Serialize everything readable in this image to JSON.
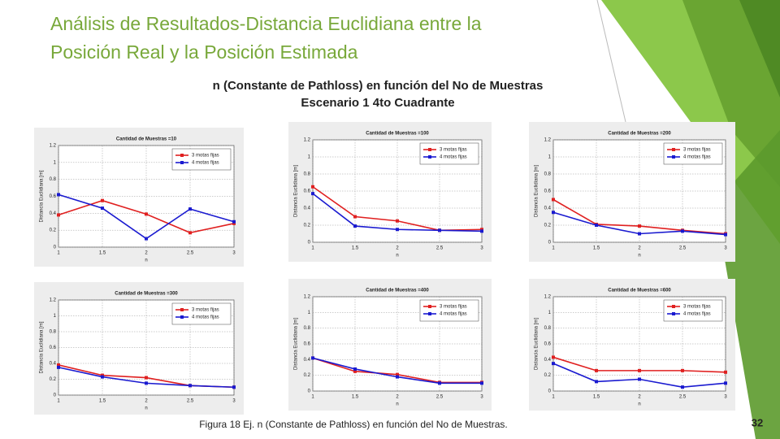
{
  "slide": {
    "title_lines": [
      "Análisis de Resultados-Distancia Euclidiana entre la",
      "Posición Real y la Posición Estimada"
    ],
    "subtitle_lines": [
      "n (Constante de Pathloss) en función del No de Muestras",
      "Escenario 1 4to Cuadrante"
    ],
    "caption": "Figura 18 Ej. n (Constante de Pathloss) en función del No de Muestras.",
    "page_number": "32"
  },
  "chart_data": [
    {
      "type": "line",
      "title": "Cantidad de Muestras =10",
      "x_label": "n",
      "y_label": "Distancia Euclidiana [m]",
      "x": [
        1,
        1.5,
        2,
        2.5,
        3
      ],
      "xlim": [
        1,
        3
      ],
      "xticks": [
        1,
        1.5,
        2,
        2.5,
        3
      ],
      "ylim": [
        0,
        1.2
      ],
      "yticks": [
        0,
        0.2,
        0.4,
        0.6,
        0.8,
        1,
        1.2
      ],
      "grid": true,
      "legend": "upper right",
      "series": [
        {
          "name": "3 motas fijas",
          "color": "#e02020",
          "values": [
            0.38,
            0.55,
            0.39,
            0.17,
            0.28
          ]
        },
        {
          "name": "4 motas fijas",
          "color": "#1a1ad0",
          "values": [
            0.62,
            0.46,
            0.1,
            0.45,
            0.3
          ]
        }
      ]
    },
    {
      "type": "line",
      "title": "Cantidad de Muestras =100",
      "x_label": "n",
      "y_label": "Distancia Euclidiana [m]",
      "x": [
        1,
        1.5,
        2,
        2.5,
        3
      ],
      "xlim": [
        1,
        3
      ],
      "xticks": [
        1,
        1.5,
        2,
        2.5,
        3
      ],
      "ylim": [
        0,
        1.2
      ],
      "yticks": [
        0,
        0.2,
        0.4,
        0.6,
        0.8,
        1,
        1.2
      ],
      "grid": true,
      "legend": "upper right",
      "series": [
        {
          "name": "3 motas fijas",
          "color": "#e02020",
          "values": [
            0.65,
            0.3,
            0.25,
            0.14,
            0.15
          ]
        },
        {
          "name": "4 motas fijas",
          "color": "#1a1ad0",
          "values": [
            0.57,
            0.19,
            0.15,
            0.14,
            0.13
          ]
        }
      ]
    },
    {
      "type": "line",
      "title": "Cantidad de Muestras =200",
      "x_label": "n",
      "y_label": "Distancia Euclidiana [m]",
      "x": [
        1,
        1.5,
        2,
        2.5,
        3
      ],
      "xlim": [
        1,
        3
      ],
      "xticks": [
        1,
        1.5,
        2,
        2.5,
        3
      ],
      "ylim": [
        0,
        1.2
      ],
      "yticks": [
        0,
        0.2,
        0.4,
        0.6,
        0.8,
        1,
        1.2
      ],
      "grid": true,
      "legend": "upper right",
      "series": [
        {
          "name": "3 motas fijas",
          "color": "#e02020",
          "values": [
            0.5,
            0.21,
            0.19,
            0.14,
            0.1
          ]
        },
        {
          "name": "4 motas fijas",
          "color": "#1a1ad0",
          "values": [
            0.35,
            0.2,
            0.1,
            0.13,
            0.09
          ]
        }
      ]
    },
    {
      "type": "line",
      "title": "Cantidad de Muestras =300",
      "x_label": "n",
      "y_label": "Distancia Euclidiana [m]",
      "x": [
        1,
        1.5,
        2,
        2.5,
        3
      ],
      "xlim": [
        1,
        3
      ],
      "xticks": [
        1,
        1.5,
        2,
        2.5,
        3
      ],
      "ylim": [
        0,
        1.2
      ],
      "yticks": [
        0,
        0.2,
        0.4,
        0.6,
        0.8,
        1,
        1.2
      ],
      "grid": true,
      "legend": "upper right",
      "series": [
        {
          "name": "3 motas fijas",
          "color": "#e02020",
          "values": [
            0.38,
            0.25,
            0.22,
            0.12,
            0.1
          ]
        },
        {
          "name": "4 motas fijas",
          "color": "#1a1ad0",
          "values": [
            0.35,
            0.23,
            0.15,
            0.12,
            0.1
          ]
        }
      ]
    },
    {
      "type": "line",
      "title": "Cantidad de Muestras =400",
      "x_label": "n",
      "y_label": "Distancia Euclidiana [m]",
      "x": [
        1,
        1.5,
        2,
        2.5,
        3
      ],
      "xlim": [
        1,
        3
      ],
      "xticks": [
        1,
        1.5,
        2,
        2.5,
        3
      ],
      "ylim": [
        0,
        1.2
      ],
      "yticks": [
        0,
        0.2,
        0.4,
        0.6,
        0.8,
        1,
        1.2
      ],
      "grid": true,
      "legend": "upper right",
      "series": [
        {
          "name": "3 motas fijas",
          "color": "#e02020",
          "values": [
            0.42,
            0.25,
            0.21,
            0.11,
            0.11
          ]
        },
        {
          "name": "4 motas fijas",
          "color": "#1a1ad0",
          "values": [
            0.42,
            0.28,
            0.18,
            0.1,
            0.1
          ]
        }
      ]
    },
    {
      "type": "line",
      "title": "Cantidad de Muestras =600",
      "x_label": "n",
      "y_label": "Distancia Euclidiana [m]",
      "x": [
        1,
        1.5,
        2,
        2.5,
        3
      ],
      "xlim": [
        1,
        3
      ],
      "xticks": [
        1,
        1.5,
        2,
        2.5,
        3
      ],
      "ylim": [
        0,
        1.2
      ],
      "yticks": [
        0,
        0.2,
        0.4,
        0.6,
        0.8,
        1,
        1.2
      ],
      "grid": true,
      "legend": "upper right",
      "series": [
        {
          "name": "3 motas fijas",
          "color": "#e02020",
          "values": [
            0.43,
            0.26,
            0.26,
            0.26,
            0.24
          ]
        },
        {
          "name": "4 motas fijas",
          "color": "#1a1ad0",
          "values": [
            0.35,
            0.12,
            0.15,
            0.05,
            0.1
          ]
        }
      ]
    }
  ]
}
